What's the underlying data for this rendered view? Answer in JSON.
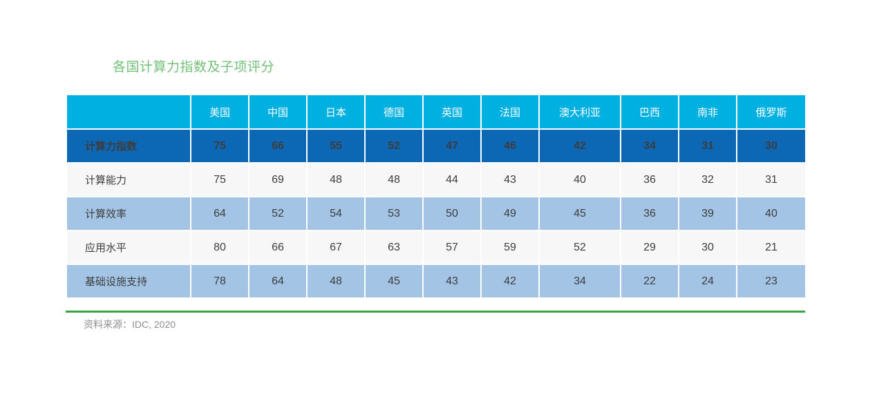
{
  "chart_data": {
    "type": "table",
    "title": "各国计算力指数及子项评分",
    "header_corner": "",
    "categories": [
      "美国",
      "中国",
      "日本",
      "德国",
      "英国",
      "法国",
      "澳大利亚",
      "巴西",
      "南非",
      "俄罗斯"
    ],
    "series": [
      {
        "name": "计算力指数",
        "values": [
          75,
          66,
          55,
          52,
          47,
          46,
          42,
          34,
          31,
          30
        ],
        "emphasis": true
      },
      {
        "name": "计算能力",
        "values": [
          75,
          69,
          48,
          48,
          44,
          43,
          40,
          36,
          32,
          31
        ],
        "emphasis": false
      },
      {
        "name": "计算效率",
        "values": [
          64,
          52,
          54,
          53,
          50,
          49,
          45,
          36,
          39,
          40
        ],
        "emphasis": false
      },
      {
        "name": "应用水平",
        "values": [
          80,
          66,
          67,
          63,
          57,
          59,
          52,
          29,
          30,
          21
        ],
        "emphasis": false
      },
      {
        "name": "基础设施支持",
        "values": [
          78,
          64,
          48,
          45,
          43,
          42,
          34,
          22,
          24,
          23
        ],
        "emphasis": false
      }
    ],
    "source": "资料来源：IDC, 2020",
    "legend_position": "none",
    "grid": "white 2px separators between cells"
  },
  "colors": {
    "header_bg": "#00b0e0",
    "index_row_bg": "#0c67b5",
    "row_light_bg": "#f7f7f8",
    "row_blue_bg": "#a3c4e4",
    "title_green": "#72c077",
    "rule_green": "#3ba346",
    "source_gray": "#8e8e8e",
    "cell_text": "#3d3d3d",
    "header_text": "#ffffff"
  }
}
